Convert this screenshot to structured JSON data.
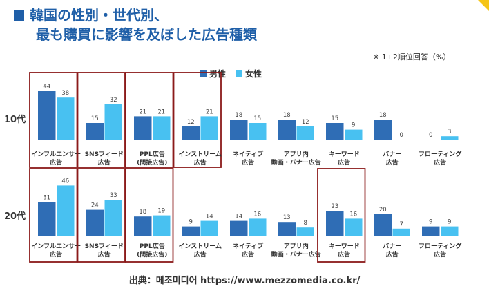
{
  "title": {
    "line1": "韓国の性別・世代別、",
    "line2": "最も購買に影響を及ぼした広告種類"
  },
  "note": "※ 1+2順位回答（%）",
  "source": "出典：메조미디어 https://www.mezzomedia.co.kr/",
  "colors": {
    "male": "#2f6db5",
    "female": "#48c1f1",
    "highlight_box": "#8b1a1a",
    "title": "#1f5fa8",
    "corner": "#f5c518"
  },
  "chart_data": {
    "type": "bar",
    "categories": [
      [
        "インフルエンサー",
        "広告"
      ],
      [
        "SNSフィード",
        "広告"
      ],
      [
        "PPL広告",
        "(間接広告)"
      ],
      [
        "インストリーム",
        "広告"
      ],
      [
        "ネイティブ",
        "広告"
      ],
      [
        "アプリ内",
        "動画・バナー広告"
      ],
      [
        "キーワード",
        "広告"
      ],
      [
        "バナー",
        "広告"
      ],
      [
        "フローティング",
        "広告"
      ]
    ],
    "legend": [
      "男性",
      "女性"
    ],
    "legend_position": "top-center",
    "ylim": [
      0,
      50
    ],
    "groups": [
      {
        "label": "10代",
        "series": [
          {
            "name": "男性",
            "values": [
              44,
              15,
              21,
              12,
              18,
              18,
              15,
              18,
              0
            ]
          },
          {
            "name": "女性",
            "values": [
              38,
              32,
              21,
              21,
              15,
              12,
              9,
              0,
              3
            ]
          }
        ],
        "highlighted": [
          0,
          1,
          2,
          3
        ]
      },
      {
        "label": "20代",
        "series": [
          {
            "name": "男性",
            "values": [
              31,
              24,
              18,
              9,
              14,
              13,
              23,
              20,
              9
            ]
          },
          {
            "name": "女性",
            "values": [
              46,
              33,
              19,
              14,
              16,
              8,
              16,
              7,
              9
            ]
          }
        ],
        "highlighted": [
          0,
          1,
          2,
          6
        ]
      }
    ]
  }
}
